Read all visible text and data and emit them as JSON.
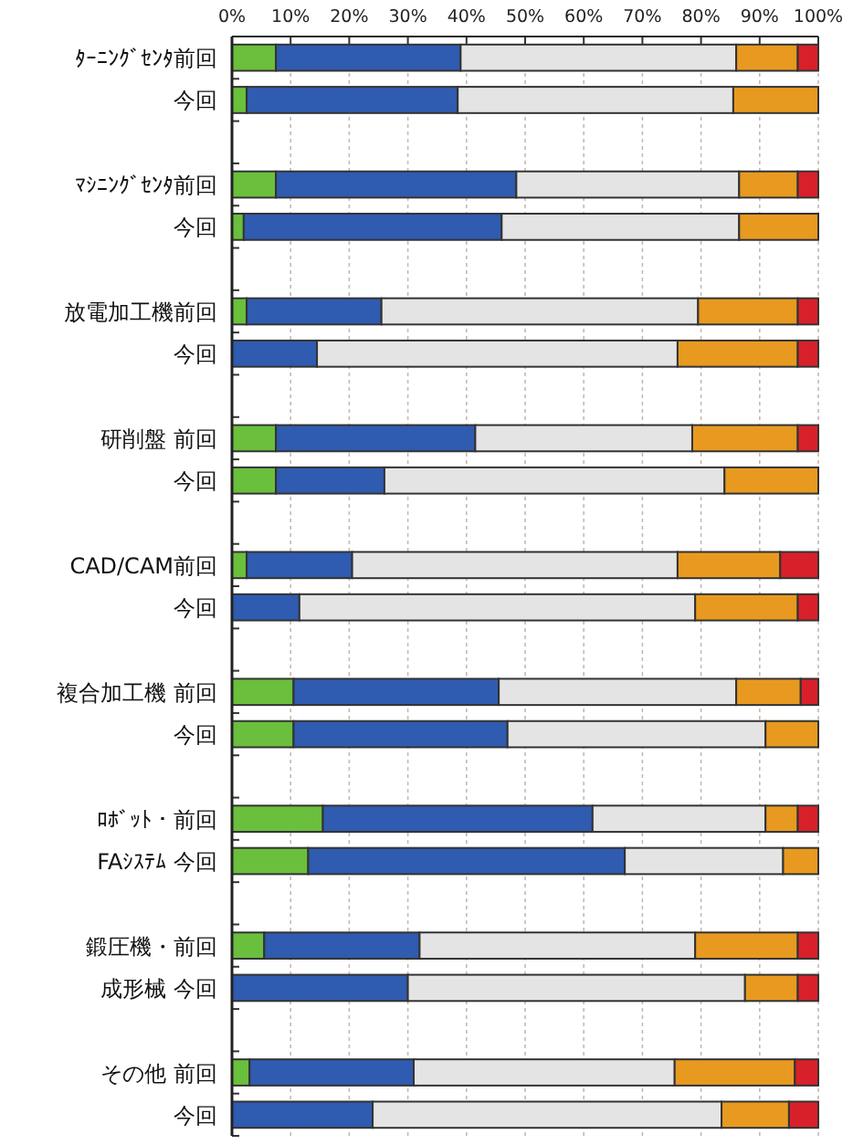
{
  "chart_data": {
    "type": "bar",
    "orientation": "horizontal",
    "stacked": true,
    "grid": "x",
    "categories": [
      "ﾀｰﾆﾝｸﾞｾﾝﾀ前回",
      "今回",
      null,
      "ﾏｼﾆﾝｸﾞｾﾝﾀ前回",
      "今回",
      null,
      "放電加工機前回",
      "今回",
      null,
      "研削盤 前回",
      "今回",
      null,
      "CAD/CAM前回",
      "今回",
      null,
      "複合加工機 前回",
      "今回",
      null,
      "ﾛﾎﾞｯﾄ・前回",
      "FAｼｽﾃﾑ 今回",
      null,
      "鍛圧機・前回",
      "成形械 今回",
      null,
      "その他 前回",
      "今回"
    ],
    "series": [
      {
        "color": "#6abf3c",
        "values": [
          7.5,
          2.5,
          null,
          7.5,
          2,
          null,
          2.5,
          null,
          null,
          7.5,
          7.5,
          null,
          2.5,
          null,
          null,
          10.5,
          10.5,
          null,
          15.5,
          13,
          null,
          5.5,
          null,
          null,
          3,
          null
        ]
      },
      {
        "color": "#2f5bb0",
        "values": [
          31.5,
          36,
          null,
          41,
          44,
          null,
          23,
          14.5,
          null,
          34,
          18.5,
          null,
          18,
          11.5,
          null,
          35,
          36.5,
          null,
          46,
          54,
          null,
          26.5,
          30,
          null,
          28,
          24
        ]
      },
      {
        "color": "#e4e4e4",
        "values": [
          47,
          47,
          null,
          38,
          40.5,
          null,
          54,
          61.5,
          null,
          37,
          58,
          null,
          55.5,
          67.5,
          null,
          40.5,
          44,
          null,
          29.5,
          27,
          null,
          47,
          57.5,
          null,
          44.5,
          59.5
        ]
      },
      {
        "color": "#e89a20",
        "values": [
          10.5,
          14.5,
          null,
          10,
          13.5,
          null,
          17,
          20.5,
          null,
          18,
          16,
          null,
          17.5,
          17.5,
          null,
          11,
          9,
          null,
          5.5,
          6,
          null,
          17.5,
          9,
          null,
          20.5,
          11.5
        ]
      },
      {
        "color": "#d8202a",
        "values": [
          3.5,
          null,
          null,
          3.5,
          null,
          null,
          3.5,
          3.5,
          null,
          3.5,
          null,
          null,
          6.5,
          3.5,
          null,
          3,
          null,
          null,
          3.5,
          null,
          null,
          3.5,
          3.5,
          null,
          4,
          5
        ]
      }
    ],
    "xlim": [
      0,
      100
    ],
    "xticks": [
      {
        "value": 0,
        "label": "0%"
      },
      {
        "value": 10,
        "label": "10%"
      },
      {
        "value": 20,
        "label": "20%"
      },
      {
        "value": 30,
        "label": "30%"
      },
      {
        "value": 40,
        "label": "40%"
      },
      {
        "value": 50,
        "label": "50%"
      },
      {
        "value": 60,
        "label": "60%"
      },
      {
        "value": 70,
        "label": "70%"
      },
      {
        "value": 80,
        "label": "80%"
      },
      {
        "value": 90,
        "label": "90%"
      },
      {
        "value": 100,
        "label": "100%"
      }
    ]
  }
}
